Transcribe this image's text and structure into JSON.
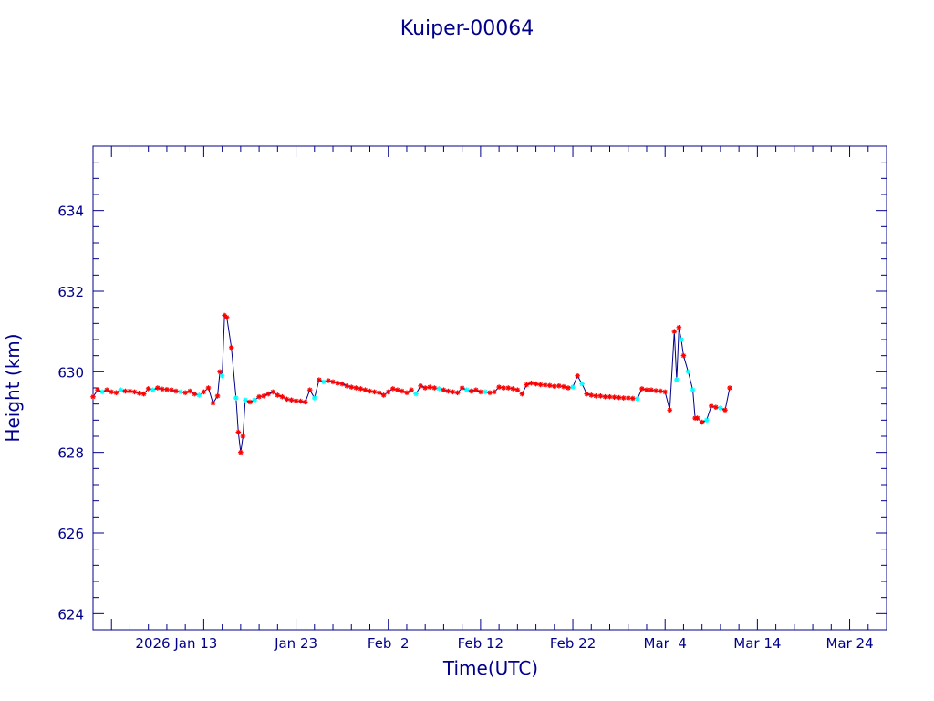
{
  "chart_data": {
    "type": "line",
    "title": "Kuiper-00064",
    "xlabel": "Time(UTC)",
    "ylabel": "Height (km)",
    "xlim": [
      "2026-01-01",
      "2026-03-28"
    ],
    "ylim": [
      623.6,
      635.6
    ],
    "yticks": [
      624,
      626,
      628,
      630,
      632,
      634
    ],
    "xtick_dates": [
      "2026-01-13",
      "2026-01-23",
      "2026-02-02",
      "2026-02-12",
      "2026-02-22",
      "2026-03-04",
      "2026-03-14",
      "2026-03-24"
    ],
    "xtick_labels": [
      "2026 Jan 13",
      "Jan 23",
      "Feb  2",
      "Feb 12",
      "Feb 22",
      "Mar  4",
      "Mar 14",
      "Mar 24"
    ],
    "colors": {
      "axis": "#00008b",
      "line": "#00008b",
      "marker_a": "#ff0000",
      "marker_b": "#00ffff"
    },
    "series": [
      {
        "points": [
          [
            "2026-01-01T00:00",
            629.38,
            "a"
          ],
          [
            "2026-01-01T12:00",
            629.55,
            "a"
          ],
          [
            "2026-01-02T00:00",
            629.5,
            "b"
          ],
          [
            "2026-01-02T12:00",
            629.55,
            "a"
          ],
          [
            "2026-01-03T00:00",
            629.5,
            "a"
          ],
          [
            "2026-01-03T12:00",
            629.48,
            "a"
          ],
          [
            "2026-01-04T00:00",
            629.55,
            "b"
          ],
          [
            "2026-01-04T12:00",
            629.52,
            "a"
          ],
          [
            "2026-01-05T00:00",
            629.52,
            "a"
          ],
          [
            "2026-01-05T12:00",
            629.5,
            "a"
          ],
          [
            "2026-01-06T00:00",
            629.47,
            "a"
          ],
          [
            "2026-01-06T12:00",
            629.45,
            "a"
          ],
          [
            "2026-01-07T00:00",
            629.58,
            "a"
          ],
          [
            "2026-01-07T12:00",
            629.55,
            "b"
          ],
          [
            "2026-01-08T00:00",
            629.6,
            "a"
          ],
          [
            "2026-01-08T12:00",
            629.57,
            "a"
          ],
          [
            "2026-01-09T00:00",
            629.56,
            "a"
          ],
          [
            "2026-01-09T12:00",
            629.55,
            "a"
          ],
          [
            "2026-01-10T00:00",
            629.52,
            "a"
          ],
          [
            "2026-01-10T12:00",
            629.5,
            "b"
          ],
          [
            "2026-01-11T00:00",
            629.48,
            "a"
          ],
          [
            "2026-01-11T12:00",
            629.52,
            "a"
          ],
          [
            "2026-01-12T00:00",
            629.45,
            "a"
          ],
          [
            "2026-01-12T12:00",
            629.42,
            "b"
          ],
          [
            "2026-01-13T00:00",
            629.5,
            "a"
          ],
          [
            "2026-01-13T12:00",
            629.6,
            "a"
          ],
          [
            "2026-01-14T00:00",
            629.22,
            "a"
          ],
          [
            "2026-01-14T12:00",
            629.4,
            "a"
          ],
          [
            "2026-01-14T18:00",
            630.0,
            "a"
          ],
          [
            "2026-01-15T00:00",
            629.9,
            "b"
          ],
          [
            "2026-01-15T06:00",
            631.4,
            "a"
          ],
          [
            "2026-01-15T12:00",
            631.35,
            "a"
          ],
          [
            "2026-01-16T00:00",
            630.6,
            "a"
          ],
          [
            "2026-01-16T12:00",
            629.35,
            "b"
          ],
          [
            "2026-01-16T18:00",
            628.5,
            "a"
          ],
          [
            "2026-01-17T00:00",
            628.0,
            "a"
          ],
          [
            "2026-01-17T06:00",
            628.4,
            "a"
          ],
          [
            "2026-01-17T12:00",
            629.3,
            "b"
          ],
          [
            "2026-01-18T00:00",
            629.25,
            "a"
          ],
          [
            "2026-01-18T12:00",
            629.3,
            "b"
          ],
          [
            "2026-01-19T00:00",
            629.38,
            "a"
          ],
          [
            "2026-01-19T12:00",
            629.4,
            "a"
          ],
          [
            "2026-01-20T00:00",
            629.45,
            "a"
          ],
          [
            "2026-01-20T12:00",
            629.5,
            "a"
          ],
          [
            "2026-01-21T00:00",
            629.42,
            "a"
          ],
          [
            "2026-01-21T12:00",
            629.38,
            "a"
          ],
          [
            "2026-01-22T00:00",
            629.32,
            "a"
          ],
          [
            "2026-01-22T12:00",
            629.3,
            "a"
          ],
          [
            "2026-01-23T00:00",
            629.28,
            "a"
          ],
          [
            "2026-01-23T12:00",
            629.27,
            "a"
          ],
          [
            "2026-01-24T00:00",
            629.25,
            "a"
          ],
          [
            "2026-01-24T12:00",
            629.55,
            "a"
          ],
          [
            "2026-01-25T00:00",
            629.35,
            "b"
          ],
          [
            "2026-01-25T12:00",
            629.8,
            "a"
          ],
          [
            "2026-01-26T00:00",
            629.75,
            "b"
          ],
          [
            "2026-01-26T12:00",
            629.78,
            "a"
          ],
          [
            "2026-01-27T00:00",
            629.75,
            "a"
          ],
          [
            "2026-01-27T12:00",
            629.72,
            "a"
          ],
          [
            "2026-01-28T00:00",
            629.7,
            "a"
          ],
          [
            "2026-01-28T12:00",
            629.65,
            "a"
          ],
          [
            "2026-01-29T00:00",
            629.62,
            "a"
          ],
          [
            "2026-01-29T12:00",
            629.6,
            "a"
          ],
          [
            "2026-01-30T00:00",
            629.58,
            "a"
          ],
          [
            "2026-01-30T12:00",
            629.55,
            "a"
          ],
          [
            "2026-01-31T00:00",
            629.52,
            "a"
          ],
          [
            "2026-01-31T12:00",
            629.5,
            "a"
          ],
          [
            "2026-02-01T00:00",
            629.48,
            "a"
          ],
          [
            "2026-02-01T12:00",
            629.42,
            "a"
          ],
          [
            "2026-02-02T00:00",
            629.5,
            "a"
          ],
          [
            "2026-02-02T12:00",
            629.58,
            "a"
          ],
          [
            "2026-02-03T00:00",
            629.55,
            "a"
          ],
          [
            "2026-02-03T12:00",
            629.52,
            "a"
          ],
          [
            "2026-02-04T00:00",
            629.48,
            "a"
          ],
          [
            "2026-02-04T12:00",
            629.55,
            "a"
          ],
          [
            "2026-02-05T00:00",
            629.45,
            "b"
          ],
          [
            "2026-02-05T12:00",
            629.65,
            "a"
          ],
          [
            "2026-02-06T00:00",
            629.6,
            "a"
          ],
          [
            "2026-02-06T12:00",
            629.62,
            "a"
          ],
          [
            "2026-02-07T00:00",
            629.6,
            "a"
          ],
          [
            "2026-02-07T12:00",
            629.58,
            "b"
          ],
          [
            "2026-02-08T00:00",
            629.55,
            "a"
          ],
          [
            "2026-02-08T12:00",
            629.52,
            "a"
          ],
          [
            "2026-02-09T00:00",
            629.5,
            "a"
          ],
          [
            "2026-02-09T12:00",
            629.48,
            "a"
          ],
          [
            "2026-02-10T00:00",
            629.6,
            "a"
          ],
          [
            "2026-02-10T12:00",
            629.55,
            "b"
          ],
          [
            "2026-02-11T00:00",
            629.52,
            "a"
          ],
          [
            "2026-02-11T12:00",
            629.55,
            "a"
          ],
          [
            "2026-02-12T00:00",
            629.5,
            "a"
          ],
          [
            "2026-02-12T12:00",
            629.5,
            "b"
          ],
          [
            "2026-02-13T00:00",
            629.48,
            "a"
          ],
          [
            "2026-02-13T12:00",
            629.5,
            "a"
          ],
          [
            "2026-02-14T00:00",
            629.62,
            "a"
          ],
          [
            "2026-02-14T12:00",
            629.6,
            "a"
          ],
          [
            "2026-02-15T00:00",
            629.6,
            "a"
          ],
          [
            "2026-02-15T12:00",
            629.58,
            "a"
          ],
          [
            "2026-02-16T00:00",
            629.55,
            "a"
          ],
          [
            "2026-02-16T12:00",
            629.45,
            "a"
          ],
          [
            "2026-02-17T00:00",
            629.68,
            "a"
          ],
          [
            "2026-02-17T12:00",
            629.72,
            "a"
          ],
          [
            "2026-02-18T00:00",
            629.7,
            "a"
          ],
          [
            "2026-02-18T12:00",
            629.68,
            "a"
          ],
          [
            "2026-02-19T00:00",
            629.67,
            "a"
          ],
          [
            "2026-02-19T12:00",
            629.66,
            "a"
          ],
          [
            "2026-02-20T00:00",
            629.64,
            "a"
          ],
          [
            "2026-02-20T12:00",
            629.65,
            "a"
          ],
          [
            "2026-02-21T00:00",
            629.63,
            "a"
          ],
          [
            "2026-02-21T12:00",
            629.6,
            "a"
          ],
          [
            "2026-02-22T00:00",
            629.62,
            "b"
          ],
          [
            "2026-02-22T12:00",
            629.9,
            "a"
          ],
          [
            "2026-02-23T00:00",
            629.7,
            "b"
          ],
          [
            "2026-02-23T12:00",
            629.45,
            "a"
          ],
          [
            "2026-02-24T00:00",
            629.42,
            "a"
          ],
          [
            "2026-02-24T12:00",
            629.4,
            "a"
          ],
          [
            "2026-02-25T00:00",
            629.4,
            "a"
          ],
          [
            "2026-02-25T12:00",
            629.38,
            "a"
          ],
          [
            "2026-02-26T00:00",
            629.38,
            "a"
          ],
          [
            "2026-02-26T12:00",
            629.37,
            "a"
          ],
          [
            "2026-02-27T00:00",
            629.36,
            "a"
          ],
          [
            "2026-02-27T12:00",
            629.35,
            "a"
          ],
          [
            "2026-02-28T00:00",
            629.35,
            "a"
          ],
          [
            "2026-02-28T12:00",
            629.34,
            "a"
          ],
          [
            "2026-03-01T00:00",
            629.33,
            "b"
          ],
          [
            "2026-03-01T12:00",
            629.58,
            "a"
          ],
          [
            "2026-03-02T00:00",
            629.55,
            "a"
          ],
          [
            "2026-03-02T12:00",
            629.55,
            "a"
          ],
          [
            "2026-03-03T00:00",
            629.53,
            "a"
          ],
          [
            "2026-03-03T12:00",
            629.52,
            "a"
          ],
          [
            "2026-03-04T00:00",
            629.5,
            "a"
          ],
          [
            "2026-03-04T12:00",
            629.05,
            "a"
          ],
          [
            "2026-03-05T00:00",
            631.0,
            "a"
          ],
          [
            "2026-03-05T06:00",
            629.8,
            "b"
          ],
          [
            "2026-03-05T12:00",
            631.1,
            "a"
          ],
          [
            "2026-03-05T18:00",
            630.8,
            "b"
          ],
          [
            "2026-03-06T00:00",
            630.4,
            "a"
          ],
          [
            "2026-03-06T12:00",
            630.0,
            "b"
          ],
          [
            "2026-03-07T00:00",
            629.55,
            "b"
          ],
          [
            "2026-03-07T06:00",
            628.85,
            "a"
          ],
          [
            "2026-03-07T12:00",
            628.85,
            "a"
          ],
          [
            "2026-03-08T00:00",
            628.75,
            "a"
          ],
          [
            "2026-03-08T12:00",
            628.8,
            "b"
          ],
          [
            "2026-03-09T00:00",
            629.15,
            "a"
          ],
          [
            "2026-03-09T12:00",
            629.12,
            "a"
          ],
          [
            "2026-03-10T00:00",
            629.1,
            "b"
          ],
          [
            "2026-03-10T12:00",
            629.05,
            "a"
          ],
          [
            "2026-03-11T00:00",
            629.6,
            "a"
          ]
        ]
      }
    ]
  }
}
